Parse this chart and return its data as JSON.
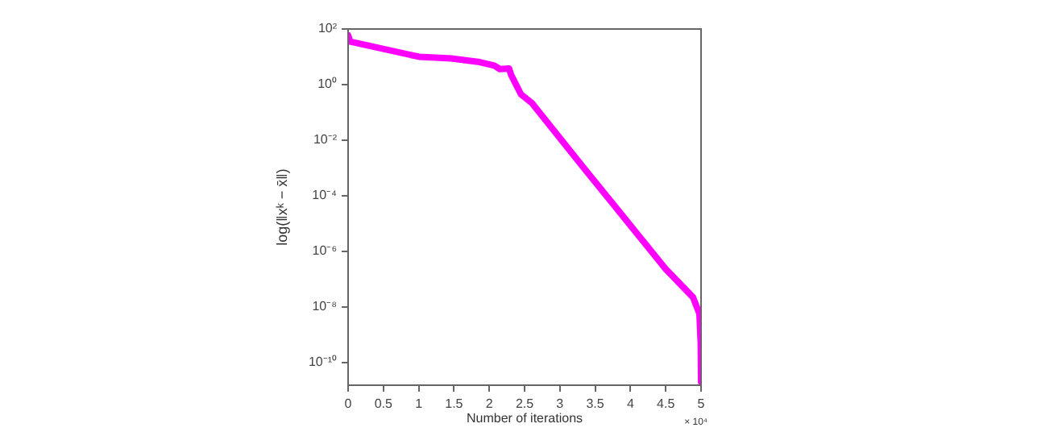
{
  "chart_data": {
    "type": "line",
    "xlabel": "Number of iterations",
    "ylabel": "log(‖xᵏ − x̄‖)",
    "annotations": [
      "× 10⁴"
    ],
    "x": [
      0,
      0.03,
      1.005,
      1.46,
      1.84,
      2.07,
      2.15,
      2.28,
      2.31,
      2.45,
      2.6,
      3.326,
      4.505,
      4.886,
      4.977,
      4.995,
      5
    ],
    "series": [
      {
        "color": "#ff00ff",
        "values": [
          60,
          35,
          10,
          8.7,
          6.6,
          4.8,
          3.6,
          3.8,
          2.2,
          0.44,
          0.22,
          0.0011,
          2.2e-07,
          2.2e-08,
          5.6e-09,
          5e-10,
          2e-11
        ]
      }
    ],
    "log": "y",
    "xlim": [
      0,
      5
    ],
    "ylim": [
      1.5e-11,
      100
    ],
    "xticks": [
      0,
      0.5,
      1,
      1.5,
      2,
      2.5,
      3,
      3.5,
      4,
      4.5,
      5
    ],
    "yticks": [
      {
        "value": 1e-10,
        "label": "10⁻¹⁰"
      },
      {
        "value": 1e-08,
        "label": "10⁻⁸"
      },
      {
        "value": 1e-06,
        "label": "10⁻⁶"
      },
      {
        "value": 0.0001,
        "label": "10⁻⁴"
      },
      {
        "value": 0.01,
        "label": "10⁻²"
      },
      {
        "value": 1,
        "label": "10⁰"
      },
      {
        "value": 100,
        "label": "10²"
      }
    ],
    "grid": false,
    "legend": false,
    "marker": "none",
    "line_style": "solid"
  }
}
